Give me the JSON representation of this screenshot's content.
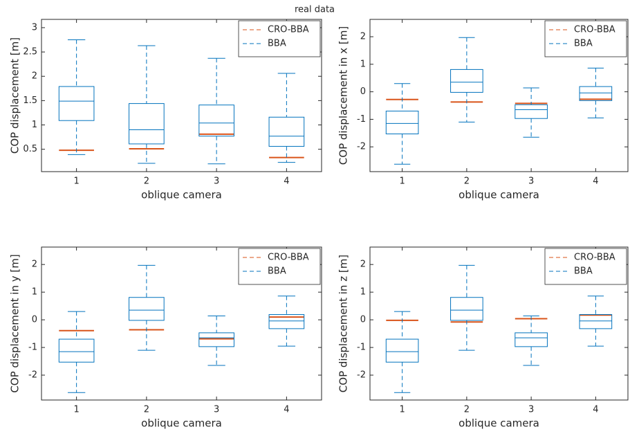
{
  "title": "real data",
  "chart_data": [
    {
      "type": "box",
      "xlabel": "oblique camera",
      "ylabel": "COP displacement [m]",
      "categories": [
        "1",
        "2",
        "3",
        "4"
      ],
      "ylim": [
        0.04,
        3.17
      ],
      "yticks": [
        0.5,
        1,
        1.5,
        2,
        2.5,
        3
      ],
      "legend": "upper right",
      "series": [
        {
          "name": "CRO-BBA",
          "color": "#d95319",
          "values": [
            0.48,
            0.51,
            0.81,
            0.33
          ]
        },
        {
          "name": "BBA",
          "color": "#0072bd",
          "whisker_low": [
            0.39,
            0.21,
            0.2,
            0.23
          ],
          "q1": [
            1.09,
            0.61,
            0.77,
            0.56
          ],
          "median": [
            1.49,
            0.9,
            1.04,
            0.77
          ],
          "q3": [
            1.79,
            1.44,
            1.41,
            1.16
          ],
          "whisker_high": [
            2.75,
            2.63,
            2.37,
            2.06
          ]
        }
      ]
    },
    {
      "type": "box",
      "xlabel": "oblique camera",
      "ylabel": "COP displacement in x [m]",
      "categories": [
        "1",
        "2",
        "3",
        "4"
      ],
      "ylim": [
        -2.9,
        2.63
      ],
      "yticks": [
        -2,
        -1,
        0,
        1,
        2
      ],
      "legend": "upper right",
      "series": [
        {
          "name": "CRO-BBA",
          "color": "#d95319",
          "values": [
            -0.28,
            -0.37,
            -0.42,
            -0.27
          ]
        },
        {
          "name": "BBA",
          "color": "#0072bd",
          "whisker_low": [
            -2.63,
            -1.1,
            -1.65,
            -0.95
          ],
          "q1": [
            -1.53,
            -0.02,
            -0.97,
            -0.32
          ],
          "median": [
            -1.15,
            0.35,
            -0.65,
            -0.04
          ],
          "q3": [
            -0.7,
            0.81,
            -0.47,
            0.19
          ],
          "whisker_high": [
            0.3,
            1.97,
            0.14,
            0.86
          ]
        }
      ]
    },
    {
      "type": "box",
      "xlabel": "oblique camera",
      "ylabel": "COP displacement in y [m]",
      "categories": [
        "1",
        "2",
        "3",
        "4"
      ],
      "ylim": [
        -2.9,
        2.63
      ],
      "yticks": [
        -2,
        -1,
        0,
        1,
        2
      ],
      "legend": "upper right",
      "series": [
        {
          "name": "CRO-BBA",
          "color": "#d95319",
          "values": [
            -0.39,
            -0.36,
            -0.69,
            0.1
          ]
        },
        {
          "name": "BBA",
          "color": "#0072bd",
          "whisker_low": [
            -2.63,
            -1.1,
            -1.65,
            -0.95
          ],
          "q1": [
            -1.53,
            -0.02,
            -0.97,
            -0.32
          ],
          "median": [
            -1.15,
            0.35,
            -0.65,
            -0.04
          ],
          "q3": [
            -0.7,
            0.81,
            -0.47,
            0.19
          ],
          "whisker_high": [
            0.3,
            1.97,
            0.14,
            0.86
          ]
        }
      ]
    },
    {
      "type": "box",
      "xlabel": "oblique camera",
      "ylabel": "COP displacement in z [m]",
      "categories": [
        "1",
        "2",
        "3",
        "4"
      ],
      "ylim": [
        -2.9,
        2.63
      ],
      "yticks": [
        -2,
        -1,
        0,
        1,
        2
      ],
      "legend": "upper right",
      "series": [
        {
          "name": "CRO-BBA",
          "color": "#d95319",
          "values": [
            -0.02,
            -0.08,
            0.04,
            0.17
          ]
        },
        {
          "name": "BBA",
          "color": "#0072bd",
          "whisker_low": [
            -2.63,
            -1.1,
            -1.65,
            -0.95
          ],
          "q1": [
            -1.53,
            -0.02,
            -0.97,
            -0.32
          ],
          "median": [
            -1.15,
            0.35,
            -0.65,
            -0.04
          ],
          "q3": [
            -0.7,
            0.81,
            -0.47,
            0.19
          ],
          "whisker_high": [
            0.3,
            1.97,
            0.14,
            0.86
          ]
        }
      ]
    }
  ]
}
